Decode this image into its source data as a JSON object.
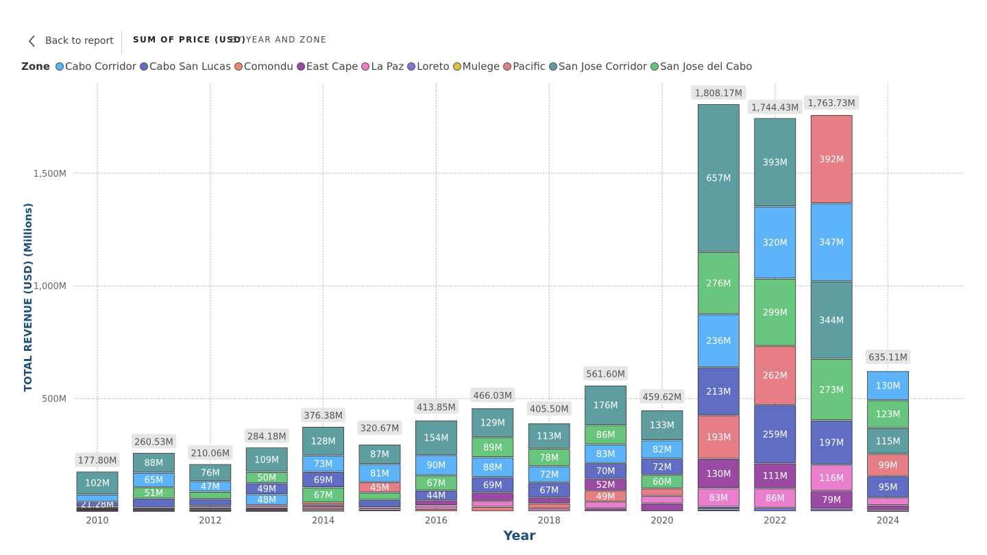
{
  "header": {
    "back_label": "Back to report",
    "crumb_metric": "SUM OF PRICE (USD)",
    "crumb_dims": "BY YEAR AND ZONE"
  },
  "legend": {
    "title": "Zone",
    "items": [
      {
        "name": "Cabo Corridor",
        "color": "#5cb3f7"
      },
      {
        "name": "Cabo San Lucas",
        "color": "#5f6dc2"
      },
      {
        "name": "Comondu",
        "color": "#f0866a"
      },
      {
        "name": "East Cape",
        "color": "#9a4aa3"
      },
      {
        "name": "La Paz",
        "color": "#ea7fcd"
      },
      {
        "name": "Loreto",
        "color": "#7b74d4"
      },
      {
        "name": "Mulege",
        "color": "#e2c044"
      },
      {
        "name": "Pacific",
        "color": "#e57e85"
      },
      {
        "name": "San Jose Corridor",
        "color": "#5f9ea0"
      },
      {
        "name": "San Jose del Cabo",
        "color": "#68c57d"
      }
    ]
  },
  "chart_data": {
    "type": "bar",
    "stacked": true,
    "xlabel": "Year",
    "ylabel": "TOTAL REVENUE (USD) (Millions)",
    "ylim": [
      0,
      1850
    ],
    "yticks": [
      {
        "value": 500,
        "label": "500M"
      },
      {
        "value": 1000,
        "label": "1,000M"
      },
      {
        "value": 1500,
        "label": "1,500M"
      }
    ],
    "xtick_years": [
      "2010",
      "2012",
      "2014",
      "2016",
      "2018",
      "2020",
      "2022",
      "2024"
    ],
    "grid": true,
    "legend_position": "top-left",
    "bars": [
      {
        "year": "2010",
        "total": 177.8,
        "total_label": "177.80M",
        "segments": [
          {
            "zone": "Loreto",
            "value": 5
          },
          {
            "zone": "Comondu",
            "value": 5
          },
          {
            "zone": "East Cape",
            "value": 5
          },
          {
            "zone": "La Paz",
            "value": 6
          },
          {
            "zone": "Cabo San Lucas",
            "value": 21,
            "label": "21.28M"
          },
          {
            "zone": "Cabo Corridor",
            "value": 33
          },
          {
            "zone": "San Jose Corridor",
            "value": 102,
            "label": "102M"
          }
        ]
      },
      {
        "year": "2011",
        "total": 260.53,
        "total_label": "260.53M",
        "segments": [
          {
            "zone": "Loreto",
            "value": 5
          },
          {
            "zone": "La Paz",
            "value": 6
          },
          {
            "zone": "East Cape",
            "value": 6
          },
          {
            "zone": "Cabo San Lucas",
            "value": 39
          },
          {
            "zone": "San Jose del Cabo",
            "value": 51,
            "label": "51M"
          },
          {
            "zone": "Cabo Corridor",
            "value": 65,
            "label": "65M"
          },
          {
            "zone": "San Jose Corridor",
            "value": 88,
            "label": "88M"
          }
        ]
      },
      {
        "year": "2012",
        "total": 210.06,
        "total_label": "210.06M",
        "segments": [
          {
            "zone": "Loreto",
            "value": 5
          },
          {
            "zone": "Comondu",
            "value": 5
          },
          {
            "zone": "East Cape",
            "value": 7
          },
          {
            "zone": "La Paz",
            "value": 8
          },
          {
            "zone": "Cabo San Lucas",
            "value": 30
          },
          {
            "zone": "San Jose del Cabo",
            "value": 32
          },
          {
            "zone": "Cabo Corridor",
            "value": 47,
            "label": "47M"
          },
          {
            "zone": "San Jose Corridor",
            "value": 76,
            "label": "76M"
          }
        ]
      },
      {
        "year": "2013",
        "total": 284.18,
        "total_label": "284.18M",
        "segments": [
          {
            "zone": "Loreto",
            "value": 5
          },
          {
            "zone": "Comondu",
            "value": 6
          },
          {
            "zone": "East Cape",
            "value": 6
          },
          {
            "zone": "La Paz",
            "value": 11
          },
          {
            "zone": "Cabo Corridor",
            "value": 48,
            "label": "48M"
          },
          {
            "zone": "Cabo San Lucas",
            "value": 49,
            "label": "49M"
          },
          {
            "zone": "San Jose del Cabo",
            "value": 50,
            "label": "50M"
          },
          {
            "zone": "San Jose Corridor",
            "value": 109,
            "label": "109M"
          }
        ]
      },
      {
        "year": "2014",
        "total": 376.38,
        "total_label": "376.38M",
        "segments": [
          {
            "zone": "Loreto",
            "value": 6
          },
          {
            "zone": "Pacific",
            "value": 11
          },
          {
            "zone": "East Cape",
            "value": 11
          },
          {
            "zone": "Comondu",
            "value": 11
          },
          {
            "zone": "San Jose del Cabo",
            "value": 67,
            "label": "67M"
          },
          {
            "zone": "Cabo San Lucas",
            "value": 69,
            "label": "69M"
          },
          {
            "zone": "Cabo Corridor",
            "value": 73,
            "label": "73M"
          },
          {
            "zone": "San Jose Corridor",
            "value": 128,
            "label": "128M"
          }
        ]
      },
      {
        "year": "2015",
        "total": 320.67,
        "total_label": "320.67M",
        "segments": [
          {
            "zone": "Loreto",
            "value": 8
          },
          {
            "zone": "La Paz",
            "value": 10
          },
          {
            "zone": "Cabo San Lucas",
            "value": 33
          },
          {
            "zone": "San Jose del Cabo",
            "value": 33
          },
          {
            "zone": "Pacific",
            "value": 45,
            "label": "45M"
          },
          {
            "zone": "Cabo Corridor",
            "value": 81,
            "label": "81M"
          },
          {
            "zone": "San Jose Corridor",
            "value": 87,
            "label": "87M"
          }
        ]
      },
      {
        "year": "2016",
        "total": 413.85,
        "total_label": "413.85M",
        "segments": [
          {
            "zone": "Pacific",
            "value": 11
          },
          {
            "zone": "La Paz",
            "value": 16
          },
          {
            "zone": "East Cape",
            "value": 22
          },
          {
            "zone": "Cabo San Lucas",
            "value": 44,
            "label": "44M"
          },
          {
            "zone": "San Jose del Cabo",
            "value": 67,
            "label": "67M"
          },
          {
            "zone": "Cabo Corridor",
            "value": 90,
            "label": "90M"
          },
          {
            "zone": "San Jose Corridor",
            "value": 154,
            "label": "154M"
          }
        ]
      },
      {
        "year": "2017",
        "total": 466.03,
        "total_label": "466.03M",
        "segments": [
          {
            "zone": "Pacific",
            "value": 20
          },
          {
            "zone": "La Paz",
            "value": 26
          },
          {
            "zone": "East Cape",
            "value": 37
          },
          {
            "zone": "Cabo San Lucas",
            "value": 69,
            "label": "69M"
          },
          {
            "zone": "Cabo Corridor",
            "value": 88,
            "label": "88M"
          },
          {
            "zone": "San Jose del Cabo",
            "value": 89,
            "label": "89M"
          },
          {
            "zone": "San Jose Corridor",
            "value": 129,
            "label": "129M"
          }
        ]
      },
      {
        "year": "2018",
        "total": 405.5,
        "total_label": "405.50M",
        "segments": [
          {
            "zone": "La Paz",
            "value": 13
          },
          {
            "zone": "Pacific",
            "value": 22
          },
          {
            "zone": "East Cape",
            "value": 26
          },
          {
            "zone": "Cabo San Lucas",
            "value": 67,
            "label": "67M"
          },
          {
            "zone": "Cabo Corridor",
            "value": 72,
            "label": "72M"
          },
          {
            "zone": "San Jose del Cabo",
            "value": 78,
            "label": "78M"
          },
          {
            "zone": "San Jose Corridor",
            "value": 113,
            "label": "113M"
          }
        ]
      },
      {
        "year": "2019",
        "total": 561.6,
        "total_label": "561.60M",
        "segments": [
          {
            "zone": "East Cape",
            "value": 13
          },
          {
            "zone": "La Paz",
            "value": 30
          },
          {
            "zone": "Pacific",
            "value": 49,
            "label": "49M"
          },
          {
            "zone": "East Cape",
            "value": 52,
            "label": "52M"
          },
          {
            "zone": "Cabo San Lucas",
            "value": 70,
            "label": "70M"
          },
          {
            "zone": "Cabo Corridor",
            "value": 83,
            "label": "83M"
          },
          {
            "zone": "San Jose del Cabo",
            "value": 86,
            "label": "86M"
          },
          {
            "zone": "San Jose Corridor",
            "value": 176,
            "label": "176M"
          }
        ]
      },
      {
        "year": "2020",
        "total": 459.62,
        "total_label": "459.62M",
        "segments": [
          {
            "zone": "East Cape",
            "value": 35
          },
          {
            "zone": "La Paz",
            "value": 33
          },
          {
            "zone": "Pacific",
            "value": 34
          },
          {
            "zone": "San Jose del Cabo",
            "value": 60,
            "label": "60M"
          },
          {
            "zone": "Cabo San Lucas",
            "value": 72,
            "label": "72M"
          },
          {
            "zone": "Cabo Corridor",
            "value": 82,
            "label": "82M"
          },
          {
            "zone": "San Jose Corridor",
            "value": 133,
            "label": "133M"
          }
        ]
      },
      {
        "year": "2021",
        "total": 1808.17,
        "total_label": "1,808.17M",
        "segments": [
          {
            "zone": "Loreto",
            "value": 8
          },
          {
            "zone": "Cabo San Lucas",
            "value": 12
          },
          {
            "zone": "La Paz",
            "value": 83,
            "label": "83M"
          },
          {
            "zone": "East Cape",
            "value": 130,
            "label": "130M"
          },
          {
            "zone": "Pacific",
            "value": 193,
            "label": "193M"
          },
          {
            "zone": "Cabo San Lucas",
            "value": 213,
            "label": "213M"
          },
          {
            "zone": "Cabo Corridor",
            "value": 236,
            "label": "236M"
          },
          {
            "zone": "San Jose del Cabo",
            "value": 276,
            "label": "276M"
          },
          {
            "zone": "San Jose Corridor",
            "value": 657,
            "label": "657M"
          }
        ]
      },
      {
        "year": "2022",
        "total": 1744.43,
        "total_label": "1,744.43M",
        "segments": [
          {
            "zone": "Loreto",
            "value": 16
          },
          {
            "zone": "La Paz",
            "value": 86,
            "label": "86M"
          },
          {
            "zone": "East Cape",
            "value": 111,
            "label": "111M"
          },
          {
            "zone": "Cabo San Lucas",
            "value": 259,
            "label": "259M"
          },
          {
            "zone": "Pacific",
            "value": 262,
            "label": "262M"
          },
          {
            "zone": "San Jose del Cabo",
            "value": 299,
            "label": "299M"
          },
          {
            "zone": "Cabo Corridor",
            "value": 320,
            "label": "320M"
          },
          {
            "zone": "San Jose Corridor",
            "value": 393,
            "label": "393M"
          }
        ]
      },
      {
        "year": "2023",
        "total": 1763.73,
        "total_label": "1,763.73M",
        "segments": [
          {
            "zone": "Loreto",
            "value": 12
          },
          {
            "zone": "East Cape",
            "value": 79,
            "label": "79M"
          },
          {
            "zone": "La Paz",
            "value": 116,
            "label": "116M"
          },
          {
            "zone": "Cabo San Lucas",
            "value": 197,
            "label": "197M"
          },
          {
            "zone": "San Jose del Cabo",
            "value": 273,
            "label": "273M"
          },
          {
            "zone": "San Jose Corridor",
            "value": 344,
            "label": "344M"
          },
          {
            "zone": "Cabo Corridor",
            "value": 347,
            "label": "347M"
          },
          {
            "zone": "Pacific",
            "value": 392,
            "label": "392M"
          }
        ]
      },
      {
        "year": "2024",
        "total": 635.11,
        "total_label": "635.11M",
        "segments": [
          {
            "zone": "Loreto",
            "value": 5
          },
          {
            "zone": "East Cape",
            "value": 22
          },
          {
            "zone": "La Paz",
            "value": 34
          },
          {
            "zone": "Cabo San Lucas",
            "value": 95,
            "label": "95M"
          },
          {
            "zone": "Pacific",
            "value": 99,
            "label": "99M"
          },
          {
            "zone": "San Jose Corridor",
            "value": 115,
            "label": "115M"
          },
          {
            "zone": "San Jose del Cabo",
            "value": 123,
            "label": "123M"
          },
          {
            "zone": "Cabo Corridor",
            "value": 130,
            "label": "130M"
          }
        ]
      }
    ]
  }
}
